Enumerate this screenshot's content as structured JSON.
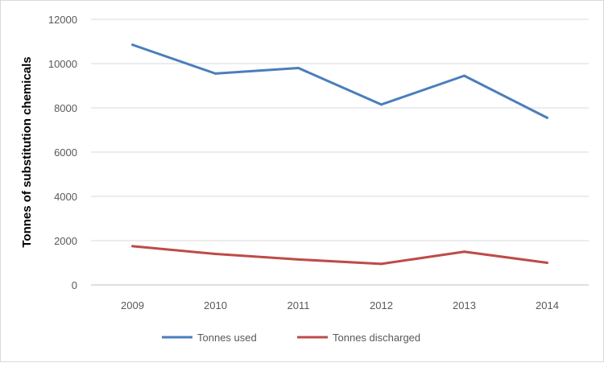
{
  "chart_data": {
    "type": "line",
    "title": "",
    "xlabel": "",
    "ylabel": "Tonnes of substitution chemicals",
    "categories": [
      "2009",
      "2010",
      "2011",
      "2012",
      "2013",
      "2014"
    ],
    "ylim": [
      0,
      12000
    ],
    "yticks": [
      "0",
      "2000",
      "4000",
      "6000",
      "8000",
      "10000",
      "12000"
    ],
    "grid": true,
    "legend_position": "bottom",
    "series": [
      {
        "name": "Tonnes used",
        "color": "#4a7ebb",
        "values": [
          10850,
          9550,
          9800,
          8150,
          9450,
          7550
        ]
      },
      {
        "name": "Tonnes discharged",
        "color": "#be4b48",
        "values": [
          1750,
          1400,
          1150,
          950,
          1500,
          1000
        ]
      }
    ]
  }
}
